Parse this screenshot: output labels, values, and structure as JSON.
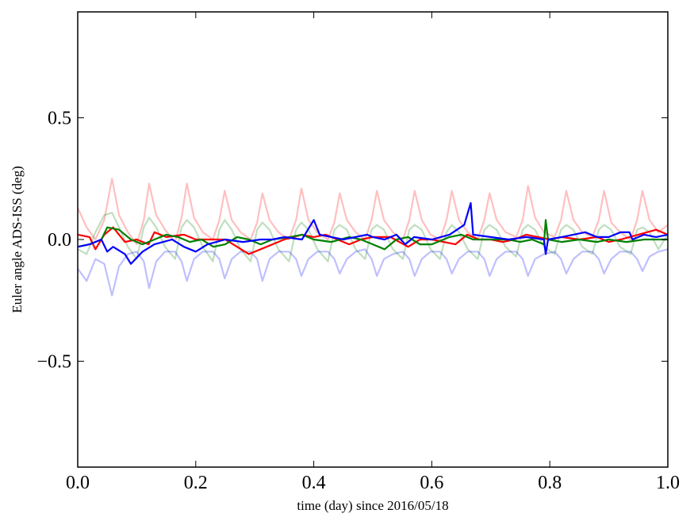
{
  "chart_data": {
    "type": "line",
    "title": "",
    "xlabel": "time (day) since 2016/05/18",
    "ylabel": "Euler angle ADS-ISS (deg)",
    "xlim": [
      0.0,
      1.0
    ],
    "ylim": [
      -0.935,
      0.935
    ],
    "xticks": [
      0.0,
      0.2,
      0.4,
      0.6,
      0.8,
      1.0
    ],
    "xtick_labels": [
      "0.0",
      "0.2",
      "0.4",
      "0.6",
      "0.8",
      "1.0"
    ],
    "yticks": [
      0.5,
      0.0,
      -0.5
    ],
    "ytick_labels": [
      "0.5",
      "0.0",
      "−0.5"
    ],
    "grid": false,
    "legend": "none",
    "series": [
      {
        "name": "faint-red",
        "color": "#ff0000",
        "alpha": 0.25,
        "x": [
          0,
          0.015,
          0.03,
          0.045,
          0.058,
          0.07,
          0.085,
          0.1,
          0.112,
          0.121,
          0.133,
          0.148,
          0.165,
          0.176,
          0.185,
          0.197,
          0.212,
          0.229,
          0.24,
          0.249,
          0.261,
          0.276,
          0.293,
          0.304,
          0.313,
          0.325,
          0.34,
          0.358,
          0.37,
          0.379,
          0.391,
          0.406,
          0.424,
          0.435,
          0.444,
          0.456,
          0.471,
          0.487,
          0.498,
          0.507,
          0.519,
          0.534,
          0.551,
          0.562,
          0.571,
          0.583,
          0.598,
          0.614,
          0.625,
          0.634,
          0.646,
          0.661,
          0.678,
          0.689,
          0.698,
          0.71,
          0.725,
          0.743,
          0.754,
          0.763,
          0.775,
          0.79,
          0.808,
          0.819,
          0.828,
          0.84,
          0.855,
          0.872,
          0.883,
          0.892,
          0.904,
          0.919,
          0.937,
          0.948,
          0.957,
          0.969,
          0.984,
          1.0
        ],
        "y": [
          0.13,
          0.05,
          0.0,
          0.08,
          0.25,
          0.1,
          0.03,
          -0.02,
          0.08,
          0.23,
          0.1,
          0.04,
          -0.01,
          0.09,
          0.23,
          0.09,
          0.03,
          0.0,
          0.08,
          0.2,
          0.08,
          0.03,
          0.0,
          0.07,
          0.19,
          0.08,
          0.03,
          0.0,
          0.08,
          0.21,
          0.08,
          0.03,
          0.0,
          0.07,
          0.19,
          0.08,
          0.03,
          0.0,
          0.08,
          0.2,
          0.08,
          0.03,
          0.0,
          0.08,
          0.2,
          0.08,
          0.02,
          0.0,
          0.08,
          0.2,
          0.08,
          0.03,
          0.0,
          0.08,
          0.19,
          0.08,
          0.03,
          0.01,
          0.08,
          0.22,
          0.09,
          0.03,
          0.01,
          0.08,
          0.2,
          0.08,
          0.03,
          0.01,
          0.08,
          0.2,
          0.07,
          0.03,
          0.0,
          0.08,
          0.2,
          0.08,
          0.03,
          0.06
        ]
      },
      {
        "name": "faint-green",
        "color": "#008000",
        "alpha": 0.25,
        "x": [
          0,
          0.015,
          0.03,
          0.045,
          0.058,
          0.07,
          0.085,
          0.1,
          0.112,
          0.121,
          0.133,
          0.148,
          0.165,
          0.176,
          0.185,
          0.197,
          0.212,
          0.229,
          0.24,
          0.249,
          0.261,
          0.276,
          0.293,
          0.304,
          0.313,
          0.325,
          0.34,
          0.358,
          0.37,
          0.379,
          0.391,
          0.406,
          0.424,
          0.435,
          0.444,
          0.456,
          0.471,
          0.487,
          0.498,
          0.507,
          0.519,
          0.534,
          0.551,
          0.562,
          0.571,
          0.583,
          0.598,
          0.614,
          0.625,
          0.634,
          0.646,
          0.661,
          0.678,
          0.689,
          0.698,
          0.71,
          0.725,
          0.743,
          0.754,
          0.763,
          0.775,
          0.79,
          0.808,
          0.819,
          0.828,
          0.84,
          0.855,
          0.872,
          0.883,
          0.892,
          0.904,
          0.919,
          0.937,
          0.948,
          0.957,
          0.969,
          0.984,
          1.0
        ],
        "y": [
          -0.04,
          -0.06,
          0.03,
          0.1,
          0.11,
          0.05,
          -0.03,
          -0.08,
          0.05,
          0.09,
          0.05,
          -0.03,
          -0.08,
          0.05,
          0.08,
          0.05,
          -0.03,
          -0.09,
          0.04,
          0.08,
          0.04,
          -0.04,
          -0.09,
          0.04,
          0.07,
          0.04,
          -0.04,
          -0.09,
          0.04,
          0.07,
          0.04,
          -0.04,
          -0.09,
          0.04,
          0.06,
          0.04,
          -0.04,
          -0.08,
          0.04,
          0.06,
          0.04,
          -0.04,
          -0.08,
          0.04,
          0.06,
          0.04,
          -0.04,
          -0.08,
          0.03,
          0.06,
          0.03,
          -0.04,
          -0.08,
          0.04,
          0.06,
          0.04,
          -0.03,
          -0.07,
          0.04,
          0.06,
          0.04,
          -0.03,
          -0.06,
          0.04,
          0.06,
          0.04,
          -0.03,
          -0.06,
          0.04,
          0.06,
          0.04,
          -0.03,
          -0.06,
          0.04,
          0.05,
          0.03,
          -0.04,
          0.02
        ]
      },
      {
        "name": "faint-blue",
        "color": "#0000ff",
        "alpha": 0.25,
        "x": [
          0,
          0.015,
          0.03,
          0.045,
          0.058,
          0.07,
          0.085,
          0.1,
          0.112,
          0.121,
          0.133,
          0.148,
          0.165,
          0.176,
          0.185,
          0.197,
          0.212,
          0.229,
          0.24,
          0.249,
          0.261,
          0.276,
          0.293,
          0.304,
          0.313,
          0.325,
          0.34,
          0.358,
          0.37,
          0.379,
          0.391,
          0.406,
          0.424,
          0.435,
          0.444,
          0.456,
          0.471,
          0.487,
          0.498,
          0.507,
          0.519,
          0.534,
          0.551,
          0.562,
          0.571,
          0.583,
          0.598,
          0.614,
          0.625,
          0.634,
          0.646,
          0.661,
          0.678,
          0.689,
          0.698,
          0.71,
          0.725,
          0.743,
          0.754,
          0.763,
          0.775,
          0.79,
          0.808,
          0.819,
          0.828,
          0.84,
          0.855,
          0.872,
          0.883,
          0.892,
          0.904,
          0.919,
          0.937,
          0.948,
          0.957,
          0.969,
          0.984,
          1.0
        ],
        "y": [
          -0.12,
          -0.17,
          -0.08,
          -0.1,
          -0.23,
          -0.11,
          -0.06,
          -0.05,
          -0.09,
          -0.2,
          -0.09,
          -0.05,
          -0.05,
          -0.09,
          -0.17,
          -0.08,
          -0.05,
          -0.05,
          -0.08,
          -0.16,
          -0.08,
          -0.05,
          -0.05,
          -0.08,
          -0.17,
          -0.08,
          -0.05,
          -0.05,
          -0.08,
          -0.15,
          -0.08,
          -0.05,
          -0.05,
          -0.08,
          -0.14,
          -0.08,
          -0.05,
          -0.04,
          -0.08,
          -0.15,
          -0.08,
          -0.06,
          -0.05,
          -0.08,
          -0.15,
          -0.08,
          -0.05,
          -0.05,
          -0.08,
          -0.14,
          -0.08,
          -0.05,
          -0.05,
          -0.08,
          -0.15,
          -0.08,
          -0.05,
          -0.05,
          -0.08,
          -0.15,
          -0.08,
          -0.06,
          -0.05,
          -0.08,
          -0.14,
          -0.08,
          -0.05,
          -0.05,
          -0.08,
          -0.14,
          -0.08,
          -0.05,
          -0.05,
          -0.08,
          -0.13,
          -0.07,
          -0.05,
          -0.04
        ]
      },
      {
        "name": "red",
        "color": "#ff0000",
        "alpha": 1,
        "x": [
          0,
          0.02,
          0.03,
          0.045,
          0.06,
          0.08,
          0.1,
          0.12,
          0.13,
          0.15,
          0.18,
          0.2,
          0.23,
          0.25,
          0.27,
          0.29,
          0.31,
          0.33,
          0.35,
          0.38,
          0.4,
          0.42,
          0.44,
          0.46,
          0.48,
          0.5,
          0.53,
          0.56,
          0.58,
          0.6,
          0.62,
          0.64,
          0.66,
          0.68,
          0.7,
          0.72,
          0.74,
          0.76,
          0.78,
          0.8,
          0.82,
          0.85,
          0.88,
          0.9,
          0.92,
          0.95,
          0.98,
          1.0
        ],
        "y": [
          0.02,
          0.01,
          -0.04,
          0.02,
          0.05,
          -0.01,
          0.0,
          -0.02,
          0.03,
          0.01,
          0.02,
          0.0,
          0.0,
          0.0,
          -0.03,
          -0.06,
          -0.04,
          -0.02,
          0.0,
          0.02,
          0.01,
          0.02,
          0.0,
          -0.02,
          0.0,
          0.01,
          0.01,
          -0.03,
          0.0,
          0.0,
          -0.01,
          -0.02,
          0.02,
          0.0,
          0.0,
          -0.01,
          0.0,
          0.02,
          0.01,
          0.0,
          0.01,
          0.0,
          0.01,
          -0.01,
          0.0,
          0.02,
          0.04,
          0.02
        ]
      },
      {
        "name": "green",
        "color": "#008000",
        "alpha": 1,
        "x": [
          0,
          0.02,
          0.04,
          0.05,
          0.07,
          0.09,
          0.11,
          0.13,
          0.15,
          0.17,
          0.19,
          0.21,
          0.23,
          0.25,
          0.27,
          0.29,
          0.31,
          0.33,
          0.36,
          0.38,
          0.4,
          0.43,
          0.46,
          0.48,
          0.5,
          0.52,
          0.54,
          0.56,
          0.58,
          0.6,
          0.63,
          0.65,
          0.67,
          0.7,
          0.73,
          0.75,
          0.77,
          0.79,
          0.793,
          0.797,
          0.82,
          0.85,
          0.88,
          0.9,
          0.93,
          0.96,
          1.0
        ],
        "y": [
          -0.03,
          -0.02,
          0.0,
          0.05,
          0.04,
          0.0,
          -0.02,
          0.0,
          0.02,
          0.01,
          -0.01,
          0.0,
          -0.03,
          -0.02,
          0.01,
          0.0,
          -0.02,
          0.0,
          0.01,
          0.02,
          0.0,
          -0.01,
          0.01,
          0.0,
          -0.02,
          -0.04,
          0.0,
          0.01,
          -0.02,
          -0.02,
          0.01,
          0.02,
          0.0,
          0.0,
          0.0,
          -0.01,
          0.0,
          -0.02,
          0.08,
          0.0,
          -0.01,
          0.0,
          -0.01,
          0.0,
          -0.01,
          0.0,
          0.0
        ]
      },
      {
        "name": "blue",
        "color": "#0000ff",
        "alpha": 1,
        "x": [
          0,
          0.02,
          0.04,
          0.05,
          0.06,
          0.08,
          0.09,
          0.11,
          0.13,
          0.16,
          0.18,
          0.2,
          0.22,
          0.25,
          0.28,
          0.31,
          0.33,
          0.35,
          0.38,
          0.395,
          0.4,
          0.41,
          0.43,
          0.45,
          0.47,
          0.49,
          0.5,
          0.52,
          0.54,
          0.555,
          0.57,
          0.6,
          0.63,
          0.655,
          0.666,
          0.67,
          0.7,
          0.73,
          0.76,
          0.79,
          0.793,
          0.797,
          0.82,
          0.84,
          0.86,
          0.88,
          0.9,
          0.92,
          0.935,
          0.94,
          0.96,
          0.98,
          1.0
        ],
        "y": [
          -0.03,
          -0.02,
          0.0,
          -0.05,
          -0.03,
          -0.06,
          -0.1,
          -0.05,
          -0.02,
          0.0,
          -0.03,
          -0.05,
          -0.02,
          0.0,
          -0.01,
          0.0,
          0.0,
          0.01,
          0.0,
          0.06,
          0.08,
          0.02,
          0.01,
          0.0,
          0.01,
          0.02,
          0.01,
          0.0,
          0.02,
          -0.02,
          0.01,
          0.0,
          0.02,
          0.06,
          0.15,
          0.02,
          0.01,
          0.0,
          0.01,
          0.0,
          -0.06,
          0.0,
          0.01,
          0.02,
          0.03,
          0.01,
          0.01,
          0.03,
          0.03,
          0.0,
          0.02,
          0.01,
          0.02
        ]
      }
    ]
  }
}
